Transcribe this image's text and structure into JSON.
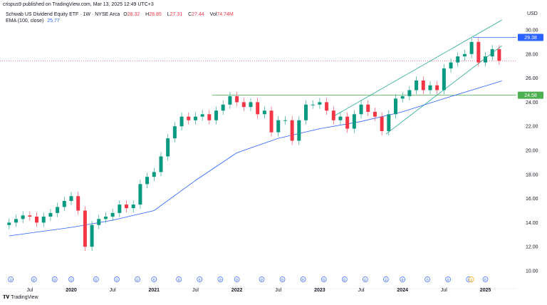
{
  "published": "crispus9 published on TradingView.com, Mar 13, 2025 12:49 UTC+3",
  "legend": {
    "symbol": "Schwab US Dividend Equity ETF · 1W · NYSE Arca",
    "o_label": "O",
    "o": "28.32",
    "h_label": "H",
    "h": "28.85",
    "l_label": "L",
    "l": "27.31",
    "c_label": "C",
    "c": "27.44",
    "vol_label": "Vol",
    "vol": "74.74M",
    "ema_label": "EMA (100, close)",
    "ema": "25.77"
  },
  "logo": "TradingView",
  "colors": {
    "up": "#089981",
    "down": "#f23645",
    "ema": "#2962ff",
    "channel": "#22ab94",
    "resistance": "#2962ff",
    "support": "#4caf50",
    "price_line": "#f23645"
  },
  "chart_data": {
    "type": "candlestick",
    "currency": "USD",
    "ylim": [
      10,
      31
    ],
    "y_ticks": [
      "10.00",
      "12.00",
      "14.00",
      "16.00",
      "18.00",
      "20.00",
      "22.00",
      "24.00",
      "26.00",
      "28.00",
      "30.00"
    ],
    "x_ticks": [
      {
        "label": "Jul",
        "t": 2019.5,
        "bold": false
      },
      {
        "label": "2020",
        "t": 2020,
        "bold": true
      },
      {
        "label": "Jul",
        "t": 2020.5,
        "bold": false
      },
      {
        "label": "2021",
        "t": 2021,
        "bold": true
      },
      {
        "label": "Jul",
        "t": 2021.5,
        "bold": false
      },
      {
        "label": "2022",
        "t": 2022,
        "bold": true
      },
      {
        "label": "Jul",
        "t": 2022.5,
        "bold": false
      },
      {
        "label": "2023",
        "t": 2023,
        "bold": true
      },
      {
        "label": "Jul",
        "t": 2023.5,
        "bold": false
      },
      {
        "label": "2024",
        "t": 2024,
        "bold": true
      },
      {
        "label": "Jul",
        "t": 2024.5,
        "bold": false
      },
      {
        "label": "2025",
        "t": 2025,
        "bold": true
      }
    ],
    "start": 2019.25,
    "closes_monthly": [
      14.0,
      14.3,
      14.6,
      14.5,
      14.0,
      14.5,
      14.8,
      15.3,
      15.8,
      16.2,
      15.0,
      12.0,
      13.8,
      14.3,
      14.5,
      14.8,
      15.5,
      15.2,
      15.5,
      17.2,
      17.8,
      18.2,
      19.5,
      21.0,
      22.0,
      22.8,
      22.5,
      22.8,
      23.0,
      22.5,
      23.3,
      23.8,
      24.5,
      24.0,
      23.6,
      24.0,
      23.0,
      23.3,
      21.5,
      22.5,
      22.5,
      20.8,
      22.5,
      23.8,
      23.8,
      24.0,
      23.3,
      22.5,
      22.8,
      21.8,
      23.0,
      23.8,
      23.2,
      22.8,
      21.6,
      23.0,
      24.3,
      24.5,
      25.0,
      25.8,
      25.0,
      25.4,
      25.0,
      26.8,
      27.3,
      27.8,
      28.0,
      29.0,
      27.3,
      27.8,
      28.4,
      27.44
    ],
    "ema_100": [
      [
        2019.25,
        12.9
      ],
      [
        2020,
        13.6
      ],
      [
        2020.5,
        14.2
      ],
      [
        2021,
        15.0
      ],
      [
        2021.5,
        17.5
      ],
      [
        2022,
        19.8
      ],
      [
        2022.5,
        21.0
      ],
      [
        2023,
        21.8
      ],
      [
        2023.5,
        22.4
      ],
      [
        2024,
        23.2
      ],
      [
        2024.5,
        24.3
      ],
      [
        2025.2,
        25.77
      ]
    ],
    "channel_upper": [
      [
        2023.17,
        22.84
      ],
      [
        2025.2,
        30.83
      ]
    ],
    "channel_lower": [
      [
        2023.8,
        21.36
      ],
      [
        2025.2,
        28.7
      ]
    ],
    "resistance": {
      "value": 29.38,
      "label": "29.38",
      "from": 2024.85
    },
    "support": {
      "value": 24.58,
      "label": "24.58",
      "from": 2021.7
    },
    "last_price": 27.44,
    "dividend_markers": [
      2019.27,
      2019.55,
      2019.8,
      2020.0,
      2020.3,
      2020.55,
      2020.8,
      2021.0,
      2021.3,
      2021.55,
      2021.8,
      2022.0,
      2022.3,
      2022.55,
      2022.8,
      2023.05,
      2023.3,
      2023.55,
      2023.8,
      2024.0,
      2024.3,
      2024.55,
      2024.8,
      2025.0
    ],
    "split_marker": {
      "t": 2024.83,
      "label": "S"
    }
  }
}
